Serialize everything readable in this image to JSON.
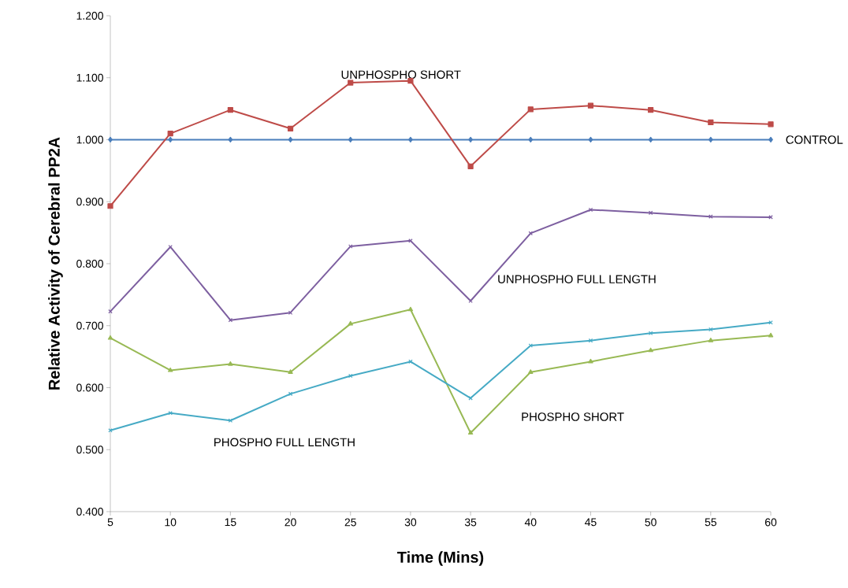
{
  "chart_data": {
    "type": "line",
    "xlabel": "Time (Mins)",
    "ylabel": "Relative Activity of Cerebral PP2A",
    "x": [
      5,
      10,
      15,
      20,
      25,
      30,
      35,
      40,
      45,
      50,
      55,
      60
    ],
    "xlim": [
      5,
      60
    ],
    "xticks": [
      5,
      10,
      15,
      20,
      25,
      30,
      35,
      40,
      45,
      50,
      55,
      60
    ],
    "ylim": [
      0.4,
      1.2
    ],
    "yticks": [
      {
        "value": 0.4,
        "label": "0.400"
      },
      {
        "value": 0.5,
        "label": "0.500"
      },
      {
        "value": 0.6,
        "label": "0.600"
      },
      {
        "value": 0.7,
        "label": "0.700"
      },
      {
        "value": 0.8,
        "label": "0.800"
      },
      {
        "value": 0.9,
        "label": "0.900"
      },
      {
        "value": 1.0,
        "label": "1.000"
      },
      {
        "value": 1.1,
        "label": "1.100"
      },
      {
        "value": 1.2,
        "label": "1.200"
      }
    ],
    "line_style": "solid",
    "series": [
      {
        "name": "CONTROL",
        "color": "#4a7ebb",
        "marker": "diamond",
        "values": [
          1.0,
          1.0,
          1.0,
          1.0,
          1.0,
          1.0,
          1.0,
          1.0,
          1.0,
          1.0,
          1.0,
          1.0
        ]
      },
      {
        "name": "UNPHOSPHO SHORT",
        "color": "#be4b48",
        "marker": "square",
        "values": [
          0.893,
          1.01,
          1.048,
          1.018,
          1.092,
          1.095,
          0.957,
          1.049,
          1.055,
          1.048,
          1.028,
          1.025
        ]
      },
      {
        "name": "UNPHOSPHO FULL LENGTH",
        "color": "#7d5fa0",
        "marker": "cross",
        "values": [
          0.723,
          0.827,
          0.709,
          0.721,
          0.828,
          0.837,
          0.74,
          0.849,
          0.887,
          0.882,
          0.876,
          0.875
        ]
      },
      {
        "name": "PHOSPHO SHORT",
        "color": "#98b954",
        "marker": "triangle",
        "values": [
          0.68,
          0.628,
          0.638,
          0.625,
          0.703,
          0.726,
          0.527,
          0.625,
          0.642,
          0.66,
          0.676,
          0.684
        ]
      },
      {
        "name": "PHOSPHO FULL LENGTH",
        "color": "#46aac5",
        "marker": "cross",
        "values": [
          0.531,
          0.559,
          0.547,
          0.59,
          0.619,
          0.642,
          0.583,
          0.668,
          0.676,
          0.688,
          0.694,
          0.705
        ]
      }
    ]
  }
}
